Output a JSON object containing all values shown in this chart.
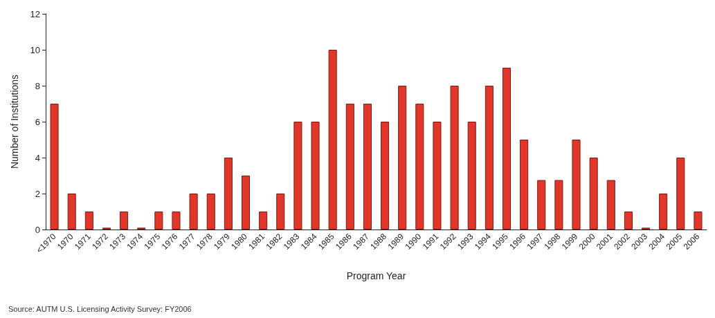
{
  "chart_data": {
    "type": "bar",
    "xlabel": "Program Year",
    "ylabel": "Number of Institutions",
    "categories": [
      "<1970",
      "1970",
      "1971",
      "1972",
      "1973",
      "1974",
      "1975",
      "1976",
      "1977",
      "1978",
      "1979",
      "1980",
      "1981",
      "1982",
      "1983",
      "1984",
      "1985",
      "1986",
      "1987",
      "1988",
      "1989",
      "1990",
      "1991",
      "1992",
      "1993",
      "1994",
      "1995",
      "1996",
      "1997",
      "1998",
      "1999",
      "2000",
      "2001",
      "2002",
      "2003",
      "2004",
      "2005",
      "2006"
    ],
    "values": [
      7,
      2,
      1,
      0.1,
      1,
      0.1,
      1,
      1,
      2,
      2,
      4,
      3,
      1,
      2,
      6,
      6,
      10,
      7,
      7,
      6,
      8,
      7,
      6,
      8,
      6,
      8,
      9,
      5,
      2.75,
      2.75,
      5,
      4,
      2.75,
      1,
      0.1,
      2,
      4,
      1
    ],
    "color": "#e0372b",
    "ylim": [
      0,
      12
    ],
    "yticks": [
      0,
      2,
      4,
      6,
      8,
      10,
      12
    ],
    "grid": false,
    "annotations": [
      "Source: AUTM U.S. Licensing Activity Survey: FY2006"
    ]
  }
}
